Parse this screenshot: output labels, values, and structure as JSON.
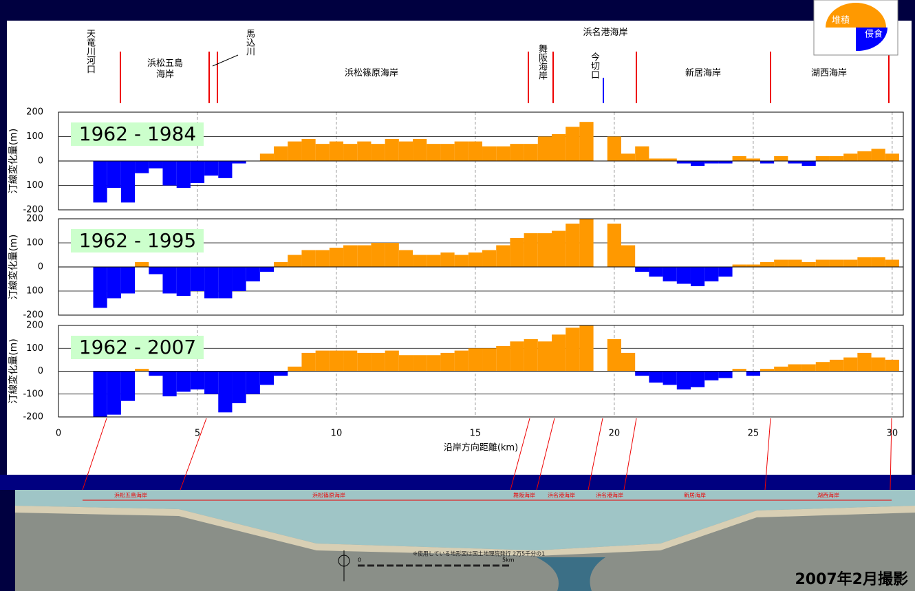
{
  "chart_data": [
    {
      "type": "bar",
      "title": "1962 - 1984",
      "ylabel": "汀線変化量(m)",
      "color": "#ff9900",
      "negative_color": "#0000ff",
      "grid": true,
      "xlim": [
        0,
        30.4
      ],
      "xticks": [
        0,
        5,
        10,
        15,
        20,
        25,
        30
      ],
      "ylim": [
        -200,
        200
      ],
      "yticks": [
        -200,
        {
          "value": -100,
          "label": "100"
        },
        0,
        100,
        200
      ],
      "x": [
        1.5,
        2,
        2.5,
        3,
        3.5,
        4,
        4.5,
        5,
        5.5,
        6,
        6.5,
        7,
        7.5,
        8,
        8.5,
        9,
        9.5,
        10,
        10.5,
        11,
        11.5,
        12,
        12.5,
        13,
        13.5,
        14,
        14.5,
        15,
        15.5,
        16,
        16.5,
        17,
        17.5,
        18,
        18.5,
        19,
        19.5,
        20,
        20.5,
        21,
        21.5,
        22,
        22.5,
        23,
        23.5,
        24,
        24.5,
        25,
        25.5,
        26,
        26.5,
        27,
        27.5,
        28,
        28.5,
        29,
        29.5,
        30
      ],
      "values": [
        -170,
        -110,
        -170,
        -50,
        -30,
        -100,
        -110,
        -90,
        -60,
        -70,
        -10,
        0,
        30,
        60,
        80,
        90,
        70,
        80,
        70,
        80,
        70,
        90,
        80,
        90,
        70,
        70,
        80,
        80,
        60,
        60,
        70,
        70,
        100,
        110,
        140,
        160,
        null,
        100,
        30,
        60,
        10,
        10,
        -10,
        -20,
        -10,
        -10,
        20,
        10,
        -10,
        20,
        -10,
        -20,
        20,
        20,
        30,
        40,
        50,
        30
      ]
    },
    {
      "type": "bar",
      "title": "1962 - 1995",
      "ylabel": "汀線変化量(m)",
      "color": "#ff9900",
      "negative_color": "#0000ff",
      "grid": true,
      "xlim": [
        0,
        30.4
      ],
      "xticks": [
        0,
        5,
        10,
        15,
        20,
        25,
        30
      ],
      "ylim": [
        -200,
        200
      ],
      "yticks": [
        -200,
        {
          "value": -100,
          "label": "100"
        },
        0,
        100,
        200
      ],
      "x": [
        1.5,
        2,
        2.5,
        3,
        3.5,
        4,
        4.5,
        5,
        5.5,
        6,
        6.5,
        7,
        7.5,
        8,
        8.5,
        9,
        9.5,
        10,
        10.5,
        11,
        11.5,
        12,
        12.5,
        13,
        13.5,
        14,
        14.5,
        15,
        15.5,
        16,
        16.5,
        17,
        17.5,
        18,
        18.5,
        19,
        19.5,
        20,
        20.5,
        21,
        21.5,
        22,
        22.5,
        23,
        23.5,
        24,
        24.5,
        25,
        25.5,
        26,
        26.5,
        27,
        27.5,
        28,
        28.5,
        29,
        29.5,
        30
      ],
      "values": [
        -170,
        -130,
        -110,
        20,
        -30,
        -110,
        -120,
        -100,
        -130,
        -130,
        -100,
        -60,
        -20,
        20,
        50,
        70,
        70,
        80,
        90,
        90,
        100,
        100,
        70,
        50,
        50,
        60,
        50,
        60,
        70,
        90,
        120,
        140,
        140,
        150,
        180,
        200,
        null,
        180,
        90,
        -20,
        -40,
        -60,
        -70,
        -80,
        -60,
        -40,
        10,
        10,
        20,
        30,
        30,
        20,
        30,
        30,
        30,
        40,
        40,
        30
      ]
    },
    {
      "type": "bar",
      "title": "1962 - 2007",
      "ylabel": "汀線変化量(m)",
      "xlabel": "沿岸方向距離(km)",
      "color": "#ff9900",
      "negative_color": "#0000ff",
      "grid": true,
      "xlim": [
        0,
        30.4
      ],
      "xticks": [
        0,
        5,
        10,
        15,
        20,
        25,
        30
      ],
      "ylim": [
        -200,
        200
      ],
      "yticks": [
        -200,
        -100,
        0,
        100,
        200
      ],
      "x": [
        1.5,
        2,
        2.5,
        3,
        3.5,
        4,
        4.5,
        5,
        5.5,
        6,
        6.5,
        7,
        7.5,
        8,
        8.5,
        9,
        9.5,
        10,
        10.5,
        11,
        11.5,
        12,
        12.5,
        13,
        13.5,
        14,
        14.5,
        15,
        15.5,
        16,
        16.5,
        17,
        17.5,
        18,
        18.5,
        19,
        19.5,
        20,
        20.5,
        21,
        21.5,
        22,
        22.5,
        23,
        23.5,
        24,
        24.5,
        25,
        25.5,
        26,
        26.5,
        27,
        27.5,
        28,
        28.5,
        29,
        29.5,
        30
      ],
      "values": [
        -200,
        -190,
        -130,
        10,
        -20,
        -110,
        -90,
        -80,
        -100,
        -180,
        -140,
        -100,
        -60,
        -20,
        20,
        80,
        90,
        90,
        90,
        80,
        80,
        90,
        70,
        70,
        70,
        80,
        90,
        100,
        100,
        110,
        130,
        140,
        130,
        160,
        190,
        200,
        null,
        140,
        80,
        -20,
        -50,
        -60,
        -80,
        -70,
        -40,
        -30,
        10,
        -20,
        10,
        20,
        30,
        30,
        40,
        50,
        60,
        80,
        60,
        50
      ]
    }
  ],
  "legend": {
    "deposit": "堆積",
    "erosion": "侵食"
  },
  "sections": [
    "天竜川河口",
    "浜松五島海岸",
    "馬込川",
    "浜松篠原海岸",
    "浜名港海岸",
    "舞阪海岸",
    "今切口",
    "新居海岸",
    "湖西海岸"
  ],
  "photo": {
    "labels": [
      "浜松五島海岸",
      "浜松篠原海岸",
      "舞阪海岸",
      "浜名港海岸",
      "浜名港海岸",
      "新居海岸",
      "湖西海岸"
    ],
    "note": "※使用している地形図は国土地理院発行 2万5千分の1",
    "scale_start": "0",
    "scale_end": "5km",
    "caption": "2007年2月撮影"
  }
}
